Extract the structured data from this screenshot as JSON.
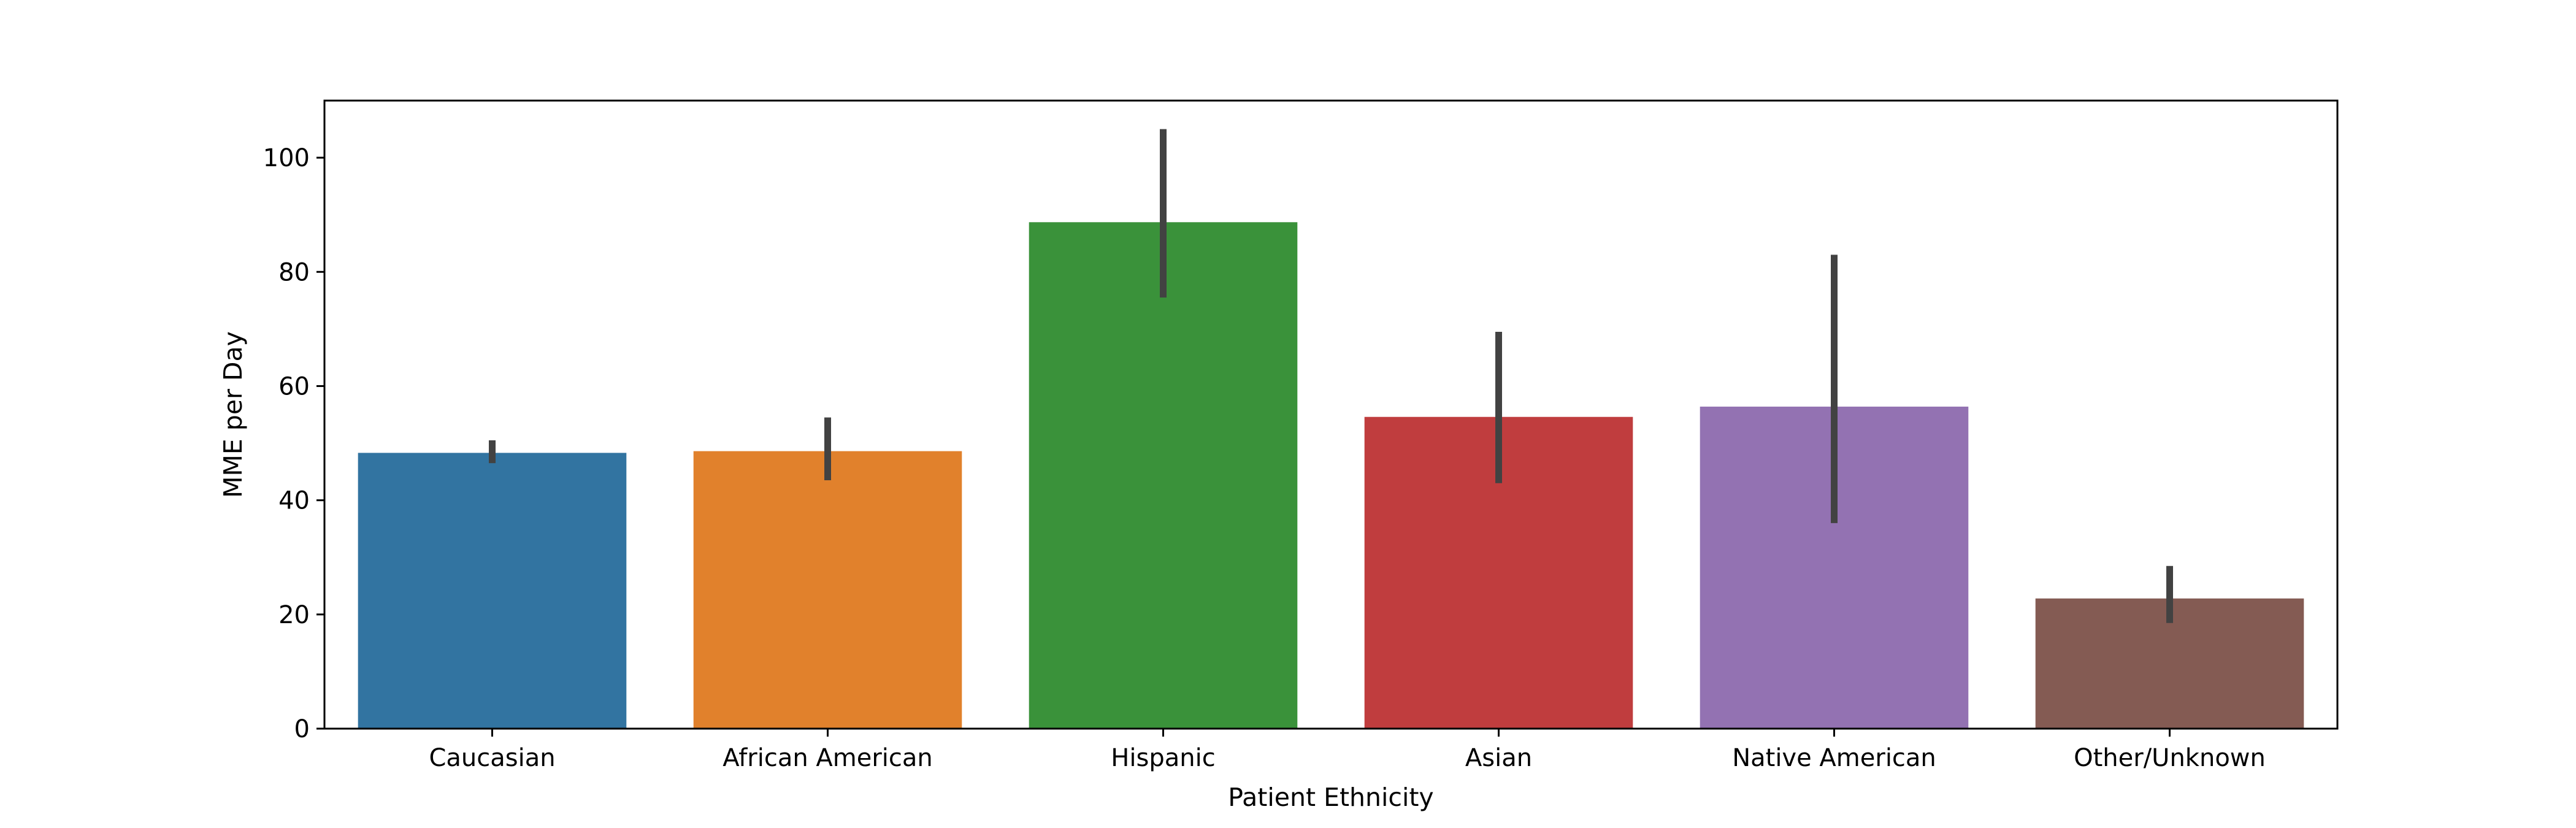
{
  "chart_data": {
    "type": "bar",
    "title": "",
    "xlabel": "Patient Ethnicity",
    "ylabel": "MME per Day",
    "categories": [
      "Caucasian",
      "African American",
      "Hispanic",
      "Asian",
      "Native American",
      "Other/Unknown"
    ],
    "values": [
      48.3,
      48.6,
      88.7,
      54.6,
      56.4,
      22.8
    ],
    "error_low": [
      46.5,
      43.5,
      75.5,
      43.0,
      36.0,
      18.5
    ],
    "error_high": [
      50.5,
      54.5,
      105.0,
      69.5,
      83.0,
      28.5
    ],
    "colors": [
      "#3274a1",
      "#e1812c",
      "#3a923a",
      "#c03d3e",
      "#9372b2",
      "#845b53"
    ],
    "errorbar_color": "#424242",
    "ylim": [
      0,
      110
    ],
    "yticks": [
      0,
      20,
      40,
      60,
      80,
      100
    ],
    "grid": false,
    "legend": "none"
  }
}
